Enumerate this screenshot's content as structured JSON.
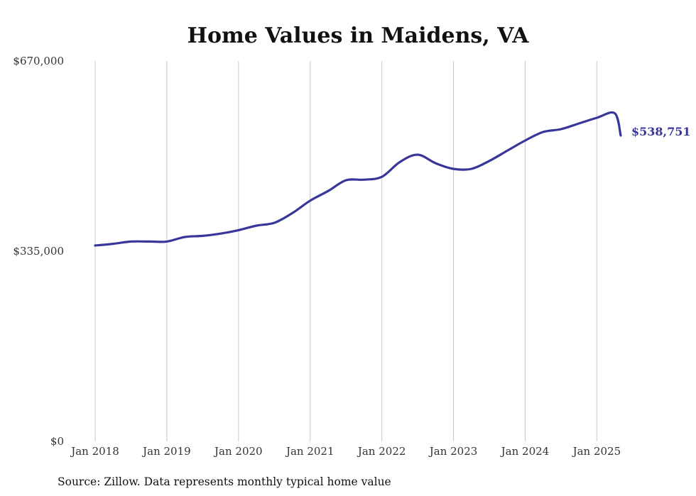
{
  "chart_data": {
    "type": "line",
    "title": "Home Values in Maidens, VA",
    "xlabel": "",
    "ylabel": "",
    "ylim": [
      0,
      670000
    ],
    "y_ticks": [
      "$0",
      "$335,000",
      "$670,000"
    ],
    "y_tick_values": [
      0,
      335000,
      670000
    ],
    "x_tick_labels": [
      "Jan 2018",
      "Jan 2019",
      "Jan 2020",
      "Jan 2021",
      "Jan 2022",
      "Jan 2023",
      "Jan 2024",
      "Jan 2025"
    ],
    "x_tick_dates": [
      "2018-01",
      "2019-01",
      "2020-01",
      "2021-01",
      "2022-01",
      "2023-01",
      "2024-01",
      "2025-01"
    ],
    "xlim": [
      "2018-01",
      "2025-05"
    ],
    "grid": "vertical",
    "line_color": "#39369a",
    "end_label": "$538,751",
    "series": [
      {
        "x": [
          "2018-01",
          "2018-04",
          "2018-07",
          "2018-10",
          "2019-01",
          "2019-04",
          "2019-07",
          "2019-10",
          "2020-01",
          "2020-04",
          "2020-07",
          "2020-10",
          "2021-01",
          "2021-04",
          "2021-07",
          "2021-10",
          "2022-01",
          "2022-04",
          "2022-07",
          "2022-10",
          "2023-01",
          "2023-04",
          "2023-07",
          "2023-10",
          "2024-01",
          "2024-04",
          "2024-07",
          "2024-10",
          "2025-01",
          "2025-04",
          "2025-05"
        ],
        "values": [
          345000,
          348000,
          352000,
          352000,
          352000,
          360000,
          362000,
          366000,
          372000,
          380000,
          385000,
          402000,
          424000,
          441000,
          460000,
          461000,
          466000,
          492000,
          505000,
          490000,
          480000,
          480000,
          494000,
          512000,
          530000,
          545000,
          550000,
          560000,
          570000,
          578000,
          538751
        ]
      }
    ]
  },
  "source": "Source: Zillow. Data represents monthly typical home value"
}
